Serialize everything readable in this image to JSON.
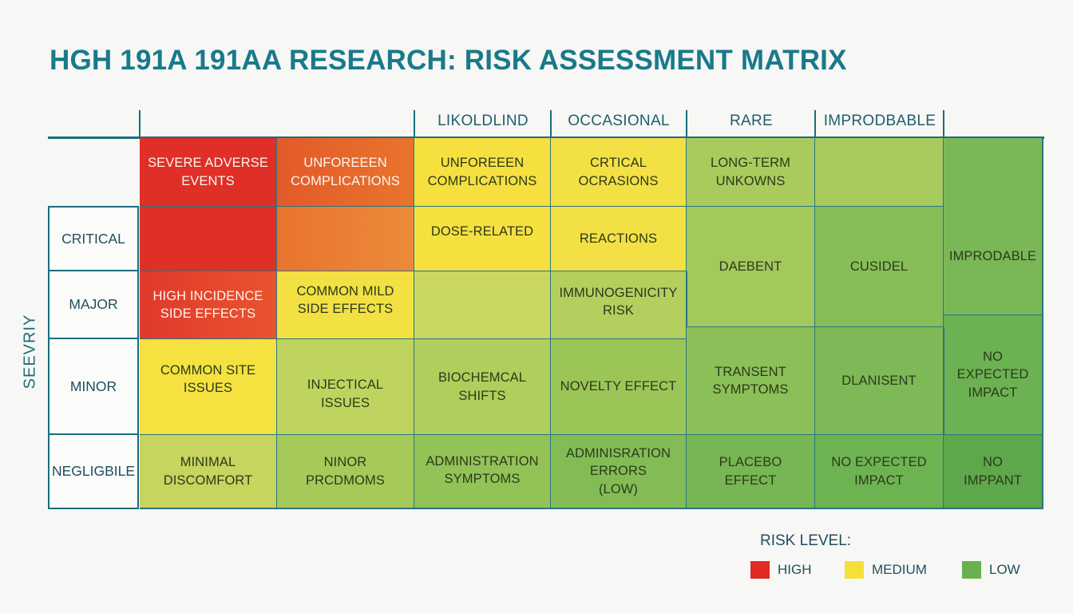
{
  "title": "HGH 191A 191AA RESEARCH: RISK ASSESSMENT MATRIX",
  "y_axis_label": "SEEVRIY",
  "columns": [
    "LIKOLDLIND",
    "OCCASIONAL",
    "RARE",
    "IMPRODBABLE"
  ],
  "rows": [
    "CRITICAL",
    "MAJOR",
    "MINOR",
    "NEGLIGBILE"
  ],
  "cells": {
    "top_0": "SEVERE ADVERSE\nEVENTS",
    "top_1": "UNFOREEEN\nCOMPLICATIONS",
    "top_2": "UNFOREEEN\nCOMPLICATIONS",
    "top_3": "CRTICAL\nOCRASIONS",
    "top_4": "LONG-TERM\nUNKOWNS",
    "critical_2": "DOSE-RELATED",
    "critical_3": "REACTIONS",
    "merged_4": "DAEBENT",
    "merged_5": "CUSIDEL",
    "right_upper": "IMPRODABLE",
    "major_0": "HIGH INCIDENCE\nSIDE EFFECTS",
    "major_1": "COMMON MILD\nSIDE EFFECTS",
    "major_3": "IMMUNOGENICITY\nRISK",
    "minor_0": "COMMON SITE\nISSUES",
    "minor_1": "INJECTICAL\nISSUES",
    "minor_2": "BIOCHEMCAL SHIFTS",
    "minor_3": "NOVELTY EFFECT",
    "minor_4": "TRANSENT\nSYMPTOMS",
    "minor_5": "DLANISENT",
    "right_middle": "NO EXPECTED\nIMPACT",
    "neg_0": "MINIMAL\nDISCOMFORT",
    "neg_1": "NINOR\nPRCDMOMS",
    "neg_2": "ADMINISTRATION\nSYMPTOMS",
    "neg_3": "ADMINISRATION\nERRORS\n(LOW)",
    "neg_4": "PLACEBO\nEFFECT",
    "neg_5": "NO EXPECTED\nIMPACT",
    "neg_6": "NO\nIMPPANT"
  },
  "legend": {
    "title": "RISK LEVEL:",
    "items": [
      {
        "label": "HIGH",
        "color": "#e02a23"
      },
      {
        "label": "MEDIUM",
        "color": "#f5e03a"
      },
      {
        "label": "LOW",
        "color": "#6ab04f"
      }
    ]
  },
  "colors": {
    "red": "#df2f26",
    "orange": "#e8742c",
    "yellow": "#f6e040",
    "yellow_green": "#c6d460",
    "light_green": "#a5c95a",
    "green": "#86bd56",
    "mid_green": "#74b554",
    "dark_green": "#62a94c"
  }
}
